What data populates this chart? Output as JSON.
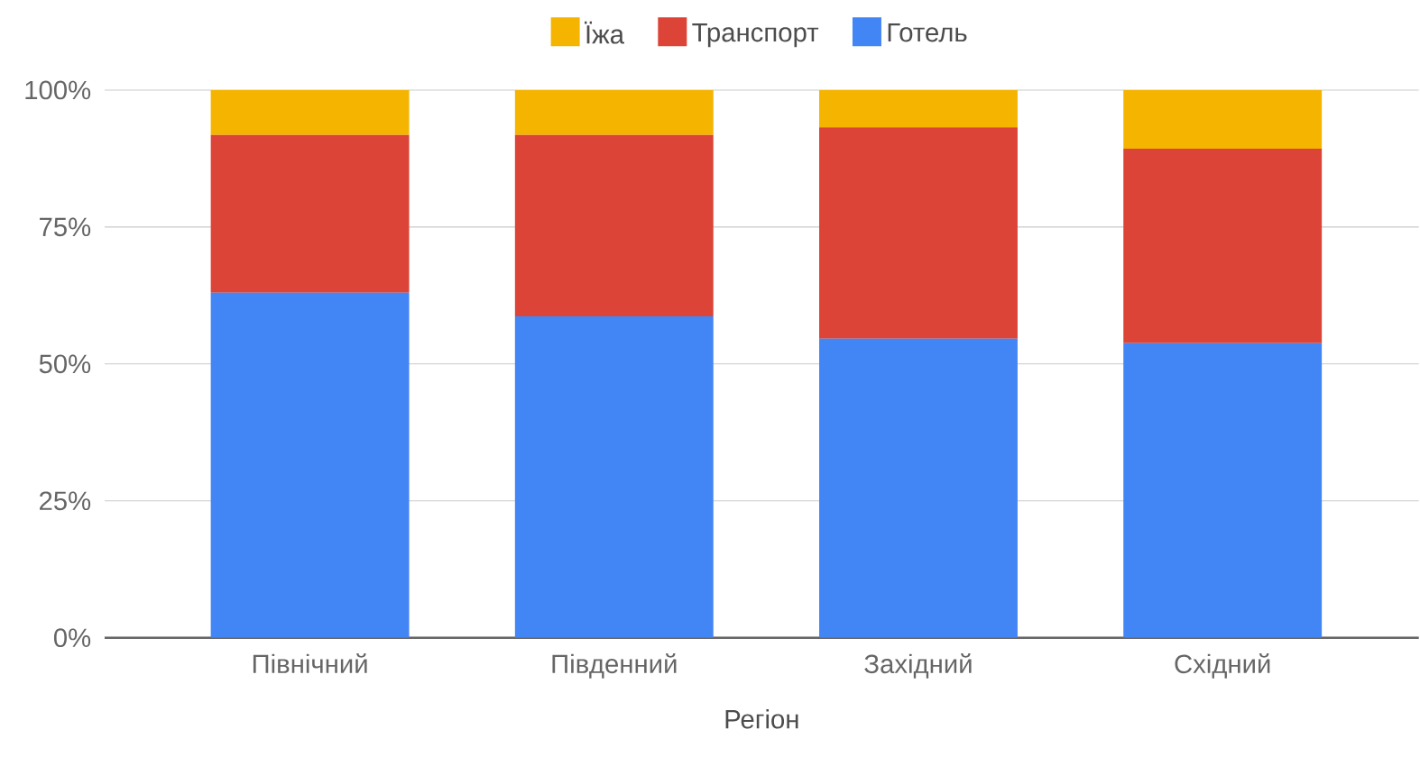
{
  "chart_data": {
    "type": "bar",
    "stacked": true,
    "xlabel": "Регіон",
    "categories": [
      "Північний",
      "Південний",
      "Західний",
      "Східний"
    ],
    "series": [
      {
        "name": "Готель",
        "color": "#4285f4",
        "values": [
          63.0,
          58.7,
          54.6,
          53.8
        ]
      },
      {
        "name": "Транспорт",
        "color": "#db4437",
        "values": [
          28.8,
          33.1,
          38.6,
          35.5
        ]
      },
      {
        "name": "Їжа",
        "color": "#f4b400",
        "values": [
          8.2,
          8.2,
          6.8,
          10.7
        ]
      }
    ],
    "ylim": [
      0,
      100
    ],
    "yticks": [
      {
        "value": 0,
        "label": "0%"
      },
      {
        "value": 25,
        "label": "25%"
      },
      {
        "value": 50,
        "label": "50%"
      },
      {
        "value": 75,
        "label": "75%"
      },
      {
        "value": 100,
        "label": "100%"
      }
    ],
    "grid": "y",
    "legend": "top"
  }
}
